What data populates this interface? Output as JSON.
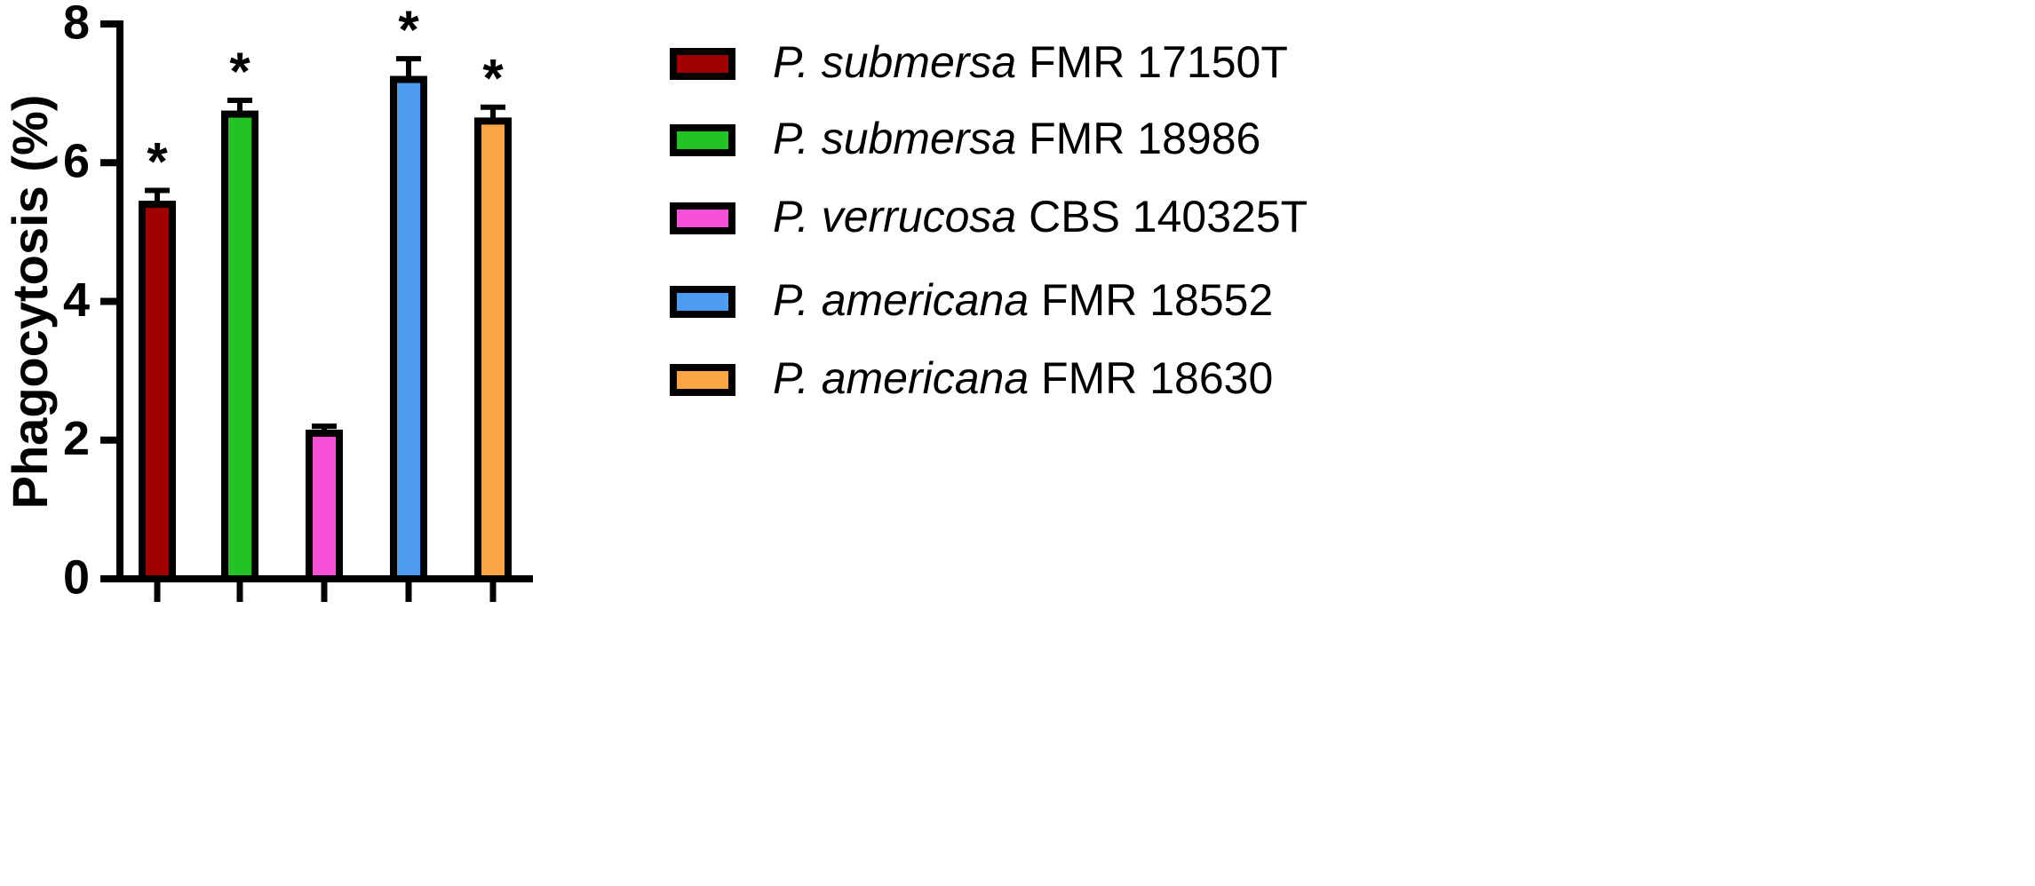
{
  "chart_data": {
    "type": "bar",
    "y_label": "Phagocytosis (%)",
    "categories": [
      null,
      null,
      null,
      null,
      null
    ],
    "values": [
      5.4,
      6.7,
      2.1,
      7.2,
      6.6
    ],
    "errors": [
      0.2,
      0.2,
      0.1,
      0.3,
      0.2
    ],
    "colors": [
      "#a00000",
      "#22c322",
      "#f550d6",
      "#4f9df0",
      "#f9a543"
    ],
    "legend": [
      "P. submersa FMR 17150T",
      "P. submersa FMR 18986",
      "P. verrucosa CBS 140325T",
      "P. americana FMR 18552",
      "P. americana FMR 18630"
    ],
    "annotations": [
      "*",
      "*",
      null,
      "*",
      "*"
    ],
    "ylim": [
      0,
      8
    ],
    "yticks": [
      0,
      2,
      4,
      6,
      8
    ]
  }
}
